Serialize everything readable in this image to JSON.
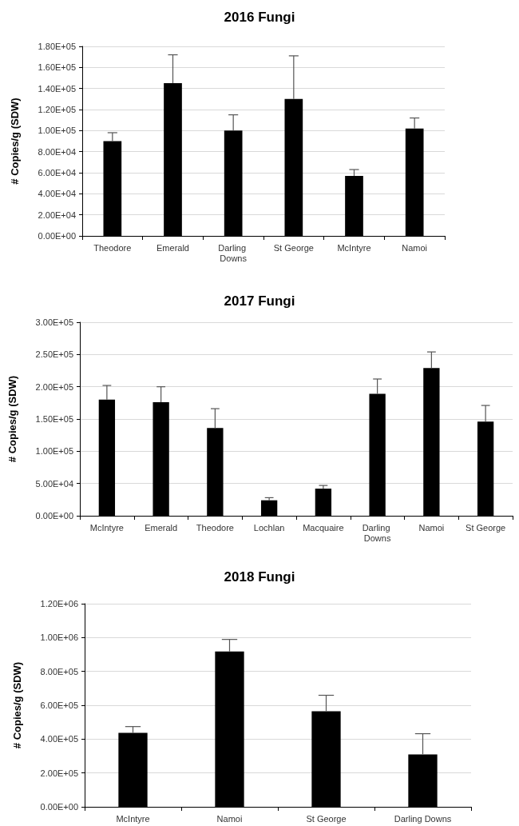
{
  "chart_data": [
    {
      "type": "bar",
      "title": "2016 Fungi",
      "ylabel": "# Copies/g (SDW)",
      "categories": [
        "Theodore",
        "Emerald",
        "Darling Downs",
        "St George",
        "McIntyre",
        "Namoi"
      ],
      "series": [
        {
          "color": "#000000",
          "values": [
            90000,
            145000,
            100000,
            130000,
            57000,
            102000
          ],
          "errors": [
            [
              90000,
              98000
            ],
            [
              145000,
              172000
            ],
            [
              100000,
              115000
            ],
            [
              130000,
              171000
            ],
            [
              57000,
              63000
            ],
            [
              102000,
              112000
            ]
          ]
        }
      ],
      "ylim": [
        0,
        180000
      ],
      "yticks": [
        {
          "value": 0,
          "label": "0.00E+00"
        },
        {
          "value": 20000,
          "label": "2.00E+04"
        },
        {
          "value": 40000,
          "label": "4.00E+04"
        },
        {
          "value": 60000,
          "label": "6.00E+04"
        },
        {
          "value": 80000,
          "label": "8.00E+04"
        },
        {
          "value": 100000,
          "label": "1.00E+05"
        },
        {
          "value": 120000,
          "label": "1.20E+05"
        },
        {
          "value": 140000,
          "label": "1.40E+05"
        },
        {
          "value": 160000,
          "label": "1.60E+05"
        },
        {
          "value": 180000,
          "label": "1.80E+05"
        }
      ],
      "grid": "y"
    },
    {
      "type": "bar",
      "title": "2017 Fungi",
      "ylabel": "# Copies/g (SDW)",
      "categories": [
        "McIntyre",
        "Emerald",
        "Theodore",
        "Lochlan",
        "Macquaire",
        "Darling Downs",
        "Namoi",
        "St George"
      ],
      "series": [
        {
          "color": "#000000",
          "values": [
            180000,
            176000,
            136000,
            24000,
            42000,
            189000,
            229000,
            146000
          ],
          "errors": [
            [
              180000,
              202000
            ],
            [
              176000,
              200000
            ],
            [
              136000,
              166000
            ],
            [
              24000,
              28000
            ],
            [
              42000,
              47000
            ],
            [
              189000,
              212000
            ],
            [
              229000,
              254000
            ],
            [
              146000,
              171000
            ]
          ]
        }
      ],
      "ylim": [
        0,
        300000
      ],
      "yticks": [
        {
          "value": 0,
          "label": "0.00E+00"
        },
        {
          "value": 50000,
          "label": "5.00E+04"
        },
        {
          "value": 100000,
          "label": "1.00E+05"
        },
        {
          "value": 150000,
          "label": "1.50E+05"
        },
        {
          "value": 200000,
          "label": "2.00E+05"
        },
        {
          "value": 250000,
          "label": "2.50E+05"
        },
        {
          "value": 300000,
          "label": "3.00E+05"
        }
      ],
      "grid": "y"
    },
    {
      "type": "bar",
      "title": "2018 Fungi",
      "ylabel": "# Copies/g (SDW)",
      "categories": [
        "McIntyre",
        "Namoi",
        "St George",
        "Darling Downs"
      ],
      "series": [
        {
          "color": "#000000",
          "values": [
            437000,
            918000,
            565000,
            310000
          ],
          "errors": [
            [
              437000,
              474000
            ],
            [
              918000,
              989000
            ],
            [
              565000,
              659000
            ],
            [
              310000,
              432000
            ]
          ]
        }
      ],
      "ylim": [
        0,
        1200000
      ],
      "yticks": [
        {
          "value": 0,
          "label": "0.00E+00"
        },
        {
          "value": 200000,
          "label": "2.00E+05"
        },
        {
          "value": 400000,
          "label": "4.00E+05"
        },
        {
          "value": 600000,
          "label": "6.00E+05"
        },
        {
          "value": 800000,
          "label": "8.00E+05"
        },
        {
          "value": 1000000,
          "label": "1.00E+06"
        },
        {
          "value": 1200000,
          "label": "1.20E+06"
        }
      ],
      "grid": "y"
    }
  ]
}
